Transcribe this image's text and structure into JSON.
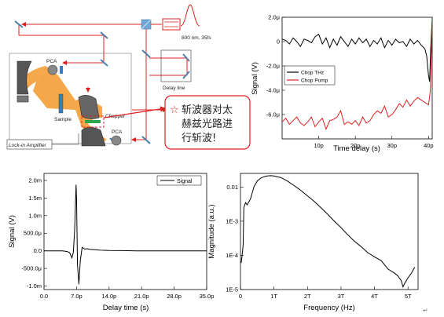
{
  "setup": {
    "laser_label": "800 nm, 35fs",
    "delay_line_label": "Delay line",
    "pca_top_label": "PCA",
    "pca_bottom_label": "PCA",
    "sample_label": "Sample",
    "chopper_label": "Chopper",
    "lockin_label": "Lock-in Amplifier",
    "note_lines": [
      "斩波器对太",
      "赫兹光路进",
      "行斩波!"
    ],
    "note_color": "#d62020"
  },
  "chart_data": [
    {
      "id": "chop",
      "type": "line",
      "xlabel": "Time delay (s)",
      "ylabel": "Signal (V)",
      "xlim": [
        0,
        41
      ],
      "ylim": [
        -8.0,
        2.0
      ],
      "x_ticks": [
        {
          "v": 10,
          "label": "10p"
        },
        {
          "v": 20,
          "label": "20p"
        },
        {
          "v": 30,
          "label": "30p"
        },
        {
          "v": 40,
          "label": "40p"
        }
      ],
      "y_ticks": [
        {
          "v": 2.0,
          "label": "2.0μ"
        },
        {
          "v": 0,
          "label": "0"
        },
        {
          "v": -2.0,
          "label": "-2.0μ"
        },
        {
          "v": -4.0,
          "label": "-4.0μ"
        },
        {
          "v": -6.0,
          "label": "-6.0μ"
        }
      ],
      "legend_position": "center",
      "series": [
        {
          "name": "Chop THz",
          "color": "#000000",
          "x": [
            0,
            1,
            2,
            3,
            4,
            5,
            6,
            7,
            8,
            9,
            10,
            11,
            12,
            13,
            14,
            15,
            16,
            17,
            18,
            19,
            20,
            21,
            22,
            23,
            24,
            25,
            26,
            27,
            28,
            29,
            30,
            31,
            32,
            33,
            34,
            35,
            36,
            37,
            38,
            39,
            39.5,
            40,
            40.3,
            40.6,
            41
          ],
          "y": [
            0.2,
            0.1,
            -0.2,
            0.3,
            0.0,
            -0.4,
            0.2,
            0.1,
            -0.1,
            0.4,
            0.6,
            -0.2,
            0.3,
            -0.5,
            0.2,
            -0.3,
            0.4,
            0.0,
            -0.4,
            0.2,
            -0.2,
            0.3,
            -0.1,
            0.2,
            -0.4,
            0.1,
            -0.2,
            0.3,
            -0.5,
            0.1,
            -0.3,
            0.2,
            -0.1,
            0.0,
            -0.4,
            0.2,
            -0.2,
            0.1,
            -0.3,
            -0.6,
            -1.2,
            -2.8,
            -3.3,
            -0.5,
            1.9
          ]
        },
        {
          "name": "Chop Pump",
          "color": "#e02020",
          "x": [
            0,
            1,
            2,
            3,
            4,
            5,
            6,
            7,
            8,
            9,
            10,
            11,
            12,
            13,
            14,
            15,
            16,
            17,
            18,
            19,
            20,
            21,
            22,
            23,
            24,
            25,
            26,
            27,
            28,
            29,
            30,
            31,
            32,
            33,
            34,
            35,
            36,
            37,
            38,
            39,
            40,
            40.5,
            41
          ],
          "y": [
            -6.6,
            -6.3,
            -6.8,
            -6.5,
            -6.2,
            -6.7,
            -6.9,
            -6.6,
            -6.2,
            -7.0,
            -6.6,
            -6.3,
            -7.2,
            -6.5,
            -6.4,
            -6.2,
            -5.7,
            -6.8,
            -6.6,
            -6.8,
            -6.5,
            -6.9,
            -6.2,
            -6.7,
            -6.5,
            -6.0,
            -5.7,
            -5.9,
            -5.3,
            -6.2,
            -6.0,
            -5.6,
            -5.1,
            -5.4,
            -4.8,
            -5.3,
            -4.9,
            -4.6,
            -4.8,
            -5.0,
            -5.2,
            -4.0,
            1.8
          ]
        }
      ]
    },
    {
      "id": "time",
      "type": "line",
      "xlabel": "Delay time (s)",
      "ylabel": "Signal (V)",
      "xlim": [
        0,
        35
      ],
      "ylim": [
        -1.1,
        2.2
      ],
      "x_ticks": [
        {
          "v": 0,
          "label": "0.0"
        },
        {
          "v": 7,
          "label": "7.0p"
        },
        {
          "v": 14,
          "label": "14.0p"
        },
        {
          "v": 21,
          "label": "21.0p"
        },
        {
          "v": 28,
          "label": "28.0p"
        },
        {
          "v": 35,
          "label": "35.0p"
        }
      ],
      "y_ticks": [
        {
          "v": 2.0,
          "label": "2.0m"
        },
        {
          "v": 1.5,
          "label": "1.5m"
        },
        {
          "v": 1.0,
          "label": "1.0m"
        },
        {
          "v": 0.5,
          "label": "500.0μ"
        },
        {
          "v": 0,
          "label": "0.0"
        },
        {
          "v": -0.5,
          "label": "-500.0μ"
        },
        {
          "v": -1.0,
          "label": "-1.0m"
        }
      ],
      "legend_position": "top-right",
      "series": [
        {
          "name": "Signal",
          "color": "#000000",
          "x": [
            0,
            2,
            4,
            5,
            5.5,
            6,
            6.3,
            6.6,
            6.9,
            7.0,
            7.2,
            7.5,
            7.8,
            8.2,
            8.7,
            9.3,
            10,
            11,
            12,
            14,
            17,
            20,
            24,
            28,
            32,
            35
          ],
          "y": [
            0,
            0,
            0,
            -0.02,
            -0.05,
            -0.2,
            -0.05,
            0.6,
            1.88,
            1.5,
            -0.4,
            -0.95,
            -0.3,
            0.1,
            0.05,
            0.06,
            0.04,
            0.03,
            0.02,
            0.01,
            0.005,
            0,
            0,
            0,
            0,
            0
          ]
        }
      ]
    },
    {
      "id": "spectrum",
      "type": "line",
      "xlabel": "Frequency (Hz)",
      "ylabel": "Magnitude (a.u.)",
      "xlim": [
        0,
        5.3
      ],
      "ylim": [
        1e-05,
        0.025
      ],
      "log_y": true,
      "x_ticks": [
        {
          "v": 0,
          "label": "0"
        },
        {
          "v": 1,
          "label": "1T"
        },
        {
          "v": 2,
          "label": "2T"
        },
        {
          "v": 3,
          "label": "3T"
        },
        {
          "v": 4,
          "label": "4T"
        },
        {
          "v": 5,
          "label": "5T"
        }
      ],
      "y_ticks": [
        {
          "v": 0.01,
          "label": "0.01"
        },
        {
          "v": 0.001,
          "label": "1E-3"
        },
        {
          "v": 0.0001,
          "label": "1E-4"
        },
        {
          "v": 1e-05,
          "label": "1E-5"
        }
      ],
      "series": [
        {
          "name": "",
          "color": "#000000",
          "x": [
            0.02,
            0.05,
            0.08,
            0.1,
            0.15,
            0.2,
            0.3,
            0.4,
            0.5,
            0.6,
            0.7,
            0.8,
            0.9,
            1.0,
            1.2,
            1.4,
            1.6,
            1.8,
            2.0,
            2.2,
            2.4,
            2.6,
            2.8,
            3.0,
            3.2,
            3.4,
            3.6,
            3.8,
            4.0,
            4.2,
            4.4,
            4.6,
            4.7,
            4.8,
            4.85,
            4.9,
            5.0,
            5.1,
            5.2
          ],
          "y": [
            6e-05,
            0.0001,
            0.0002,
            0.0025,
            0.0035,
            0.003,
            0.0045,
            0.01,
            0.015,
            0.018,
            0.02,
            0.021,
            0.0215,
            0.021,
            0.019,
            0.015,
            0.011,
            0.008,
            0.0055,
            0.0038,
            0.0025,
            0.0016,
            0.001,
            0.00065,
            0.0004,
            0.00026,
            0.00018,
            0.00012,
            9e-05,
            7e-05,
            4e-05,
            3e-05,
            2.5e-05,
            1.8e-05,
            1.2e-05,
            1.5e-05,
            2.2e-05,
            3e-05,
            4.5e-05
          ]
        }
      ]
    }
  ]
}
